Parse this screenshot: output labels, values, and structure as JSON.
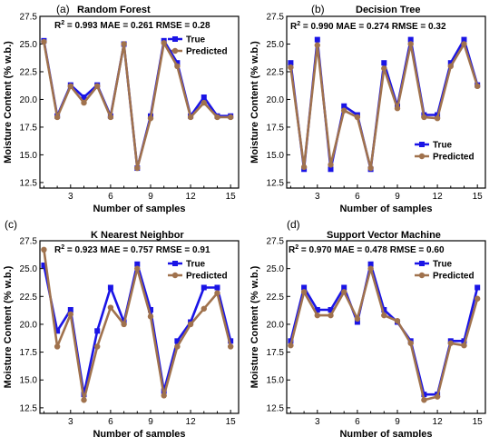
{
  "chart_data": [
    {
      "type": "line",
      "letter": "(a)",
      "title": "Random Forest",
      "metrics": {
        "r2": "R² = 0.993",
        "mae": "MAE = 0.261",
        "rmse": "RMSE = 0.28"
      },
      "xlabel": "Number of samples",
      "ylabel": "Moisture Content (% w.b.)",
      "xlim": [
        0.7,
        15.6
      ],
      "ylim": [
        12,
        27.5
      ],
      "xticks": [
        "3",
        "6",
        "9",
        "12",
        "15"
      ],
      "yticks": [
        "12.5",
        "15.0",
        "17.5",
        "20.0",
        "22.5",
        "25.0",
        "27.5"
      ],
      "legend_position": "top-right",
      "x": [
        1,
        2,
        3,
        4,
        5,
        6,
        7,
        8,
        9,
        10,
        11,
        12,
        13,
        14,
        15
      ],
      "series": [
        {
          "name": "True",
          "color": "#1a14e6",
          "marker": "square",
          "values": [
            25.3,
            18.5,
            21.3,
            20.2,
            21.3,
            18.5,
            25.0,
            13.8,
            18.5,
            25.3,
            23.3,
            18.5,
            20.2,
            18.5,
            18.5
          ]
        },
        {
          "name": "Predicted",
          "color": "#a0724d",
          "marker": "circle",
          "values": [
            25.2,
            18.4,
            21.2,
            19.7,
            21.2,
            18.4,
            25.0,
            13.8,
            18.3,
            25.1,
            23.0,
            18.4,
            19.7,
            18.4,
            18.4
          ]
        }
      ]
    },
    {
      "type": "line",
      "letter": "(b)",
      "title": "Decision Tree",
      "metrics": {
        "r2": "R² = 0.990",
        "mae": "MAE = 0.274",
        "rmse": "RMSE = 0.32"
      },
      "xlabel": "Number of samples",
      "ylabel": "Moisture Content (% w.b.)",
      "xlim": [
        0.7,
        15.6
      ],
      "ylim": [
        12,
        27.5
      ],
      "xticks": [
        "3",
        "6",
        "9",
        "12",
        "15"
      ],
      "yticks": [
        "12.5",
        "15.0",
        "17.5",
        "20.0",
        "22.5",
        "25.0",
        "27.5"
      ],
      "legend_position": "bottom-right",
      "x": [
        1,
        2,
        3,
        4,
        5,
        6,
        7,
        8,
        9,
        10,
        11,
        12,
        13,
        14,
        15
      ],
      "series": [
        {
          "name": "True",
          "color": "#1a14e6",
          "marker": "square",
          "values": [
            23.3,
            13.7,
            25.4,
            13.7,
            19.4,
            18.6,
            13.7,
            23.3,
            19.4,
            25.4,
            18.6,
            18.6,
            23.3,
            25.4,
            21.3
          ]
        },
        {
          "name": "Predicted",
          "color": "#a0724d",
          "marker": "circle",
          "values": [
            22.9,
            13.9,
            24.9,
            14.1,
            19.0,
            18.4,
            13.8,
            22.8,
            19.2,
            25.0,
            18.4,
            18.3,
            23.0,
            25.0,
            21.2
          ]
        }
      ]
    },
    {
      "type": "line",
      "letter": "(c)",
      "title": "K Nearest Neighbor",
      "metrics": {
        "r2": "R² = 0.923",
        "mae": "MAE = 0.757",
        "rmse": "RMSE = 0.91"
      },
      "xlabel": "Number of samples",
      "ylabel": "Moisture Content (% w.b.)",
      "xlim": [
        0.7,
        15.6
      ],
      "ylim": [
        12,
        27.5
      ],
      "xticks": [
        "3",
        "6",
        "9",
        "12",
        "15"
      ],
      "yticks": [
        "12.5",
        "15.0",
        "17.5",
        "20.0",
        "22.5",
        "25.0",
        "27.5"
      ],
      "legend_position": "top-right",
      "x": [
        1,
        2,
        3,
        4,
        5,
        6,
        7,
        8,
        9,
        10,
        11,
        12,
        13,
        14,
        15
      ],
      "series": [
        {
          "name": "True",
          "color": "#1a14e6",
          "marker": "square",
          "values": [
            25.3,
            19.4,
            21.3,
            13.7,
            19.4,
            23.3,
            20.2,
            25.4,
            21.3,
            14.0,
            18.5,
            20.2,
            23.3,
            23.3,
            18.5
          ]
        },
        {
          "name": "Predicted",
          "color": "#a0724d",
          "marker": "circle",
          "values": [
            26.7,
            18.0,
            20.9,
            13.2,
            18.0,
            21.5,
            20.0,
            25.0,
            20.7,
            13.6,
            18.0,
            20.0,
            21.4,
            22.8,
            18.0
          ]
        }
      ]
    },
    {
      "type": "line",
      "letter": "(d)",
      "title": "Support Vector Machine",
      "metrics": {
        "r2": "R² = 0.970",
        "mae": "MAE = 0.478",
        "rmse": "RMSE = 0.60"
      },
      "xlabel": "Number of samples",
      "ylabel": "Moisture Content (% w.b.)",
      "xlim": [
        0.7,
        15.6
      ],
      "ylim": [
        12,
        27.5
      ],
      "xticks": [
        "3",
        "6",
        "9",
        "12",
        "15"
      ],
      "yticks": [
        "12.5",
        "15.0",
        "17.5",
        "20.0",
        "22.5",
        "25.0",
        "27.5"
      ],
      "legend_position": "top-right",
      "x": [
        1,
        2,
        3,
        4,
        5,
        6,
        7,
        8,
        9,
        10,
        11,
        12,
        13,
        14,
        15
      ],
      "series": [
        {
          "name": "True",
          "color": "#1a14e6",
          "marker": "square",
          "values": [
            18.5,
            23.3,
            21.3,
            21.3,
            23.3,
            20.2,
            25.4,
            21.3,
            20.2,
            18.5,
            13.7,
            13.7,
            18.5,
            18.5,
            23.3
          ]
        },
        {
          "name": "Predicted",
          "color": "#a0724d",
          "marker": "circle",
          "values": [
            18.1,
            22.9,
            20.8,
            20.8,
            22.9,
            20.5,
            25.0,
            20.8,
            20.3,
            18.3,
            13.2,
            13.5,
            18.3,
            18.1,
            22.3
          ]
        }
      ]
    }
  ]
}
